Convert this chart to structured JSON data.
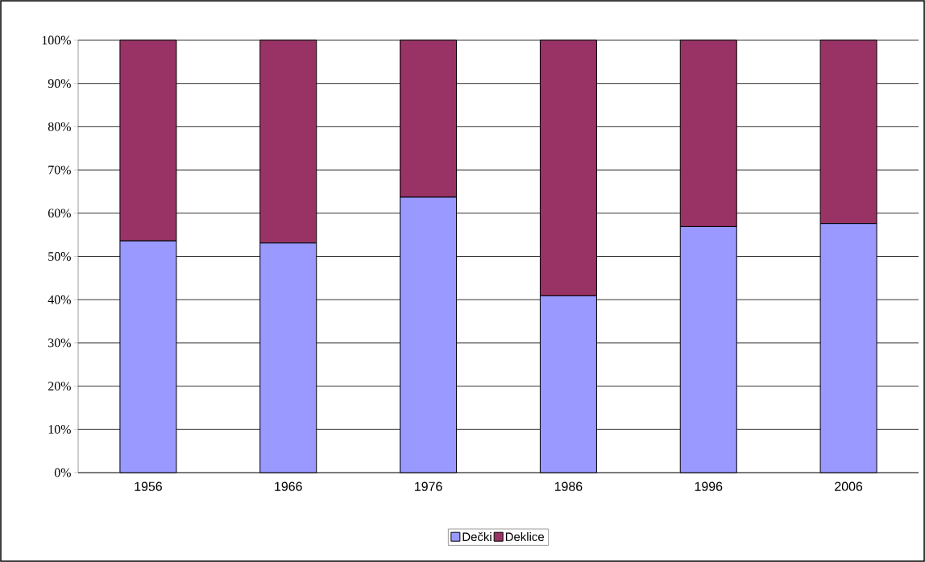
{
  "chart_data": {
    "type": "bar",
    "stacked": true,
    "categories": [
      "1956",
      "1966",
      "1976",
      "1986",
      "1996",
      "2006"
    ],
    "series": [
      {
        "name": "Dečki",
        "color": "#9999ff",
        "values": [
          53.6,
          53.1,
          63.7,
          40.9,
          56.9,
          57.6
        ]
      },
      {
        "name": "Deklice",
        "color": "#993366",
        "values": [
          46.4,
          46.9,
          36.3,
          59.1,
          43.1,
          42.4
        ]
      }
    ],
    "ylim": [
      0,
      100
    ],
    "yticks": [
      {
        "value": 0,
        "label": "0%"
      },
      {
        "value": 10,
        "label": "10%"
      },
      {
        "value": 20,
        "label": "20%"
      },
      {
        "value": 30,
        "label": "30%"
      },
      {
        "value": 40,
        "label": "40%"
      },
      {
        "value": 50,
        "label": "50%"
      },
      {
        "value": 60,
        "label": "60%"
      },
      {
        "value": 70,
        "label": "70%"
      },
      {
        "value": 80,
        "label": "80%"
      },
      {
        "value": 90,
        "label": "90%"
      },
      {
        "value": 100,
        "label": "100%"
      }
    ],
    "grid": "y",
    "legend": "bottom"
  }
}
